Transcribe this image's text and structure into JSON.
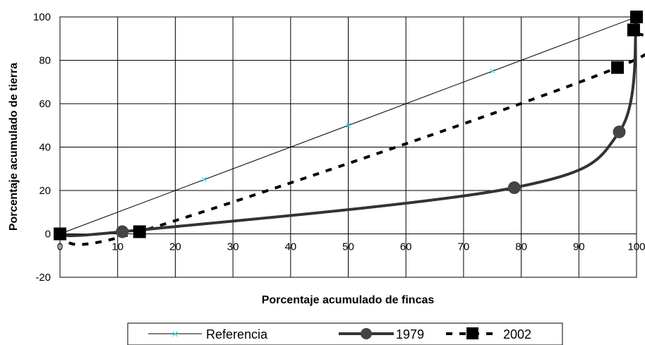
{
  "chart_data": {
    "type": "line",
    "title": "",
    "xlabel": "Porcentaje acumulado de fincas",
    "ylabel": "Porcentaje acumulado de tierra",
    "xlim": [
      0,
      100
    ],
    "ylim": [
      -20,
      100
    ],
    "xticks": [
      0,
      10,
      20,
      30,
      40,
      50,
      60,
      70,
      80,
      90,
      100
    ],
    "yticks": [
      -20,
      0,
      20,
      40,
      60,
      80,
      100
    ],
    "grid": true,
    "legend_position": "bottom",
    "series": [
      {
        "name": "Referencia",
        "style": "thin-line",
        "marker": "x",
        "marker_color": "#33dddd",
        "line_color": "#000000",
        "x": [
          0,
          25,
          50,
          75,
          100
        ],
        "y": [
          0,
          25,
          50,
          75,
          100
        ]
      },
      {
        "name": "1979",
        "style": "thick-smooth",
        "marker": "circle",
        "line_color": "#333333",
        "x": [
          0,
          10.8,
          78.8,
          97.0,
          100
        ],
        "y": [
          0,
          1.0,
          21.3,
          47.0,
          100
        ]
      },
      {
        "name": "2002",
        "style": "dashed",
        "marker": "square",
        "line_color": "#000000",
        "x": [
          0,
          13.8,
          96.7,
          99.5,
          100
        ],
        "y": [
          0,
          1.0,
          76.7,
          94.0,
          100
        ]
      }
    ]
  }
}
